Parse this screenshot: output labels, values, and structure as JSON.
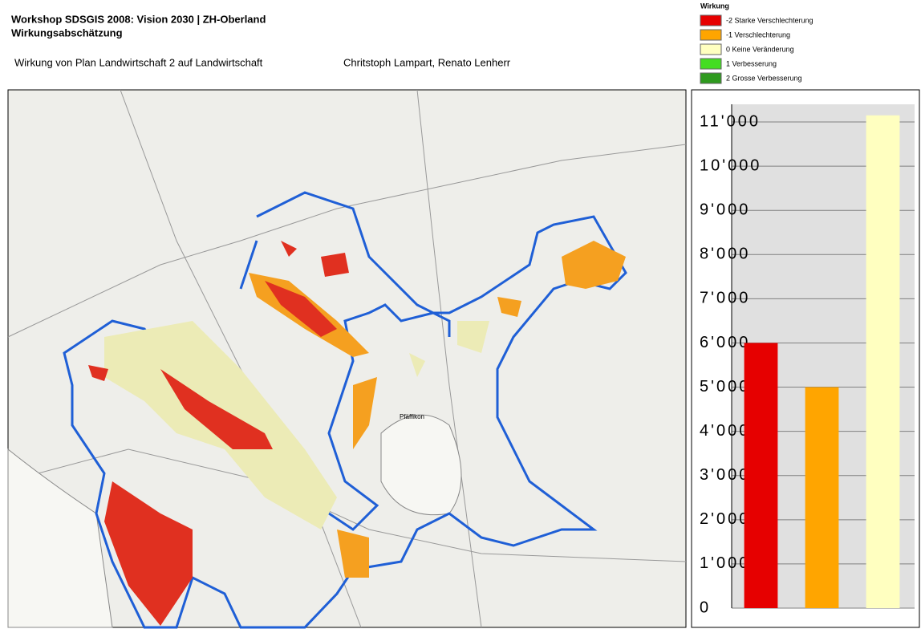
{
  "header": {
    "title": "Workshop SDSGIS 2008: Vision 2030 | ZH-Oberland",
    "subtitle": "Wirkungsabschätzung",
    "description": "Wirkung von Plan Landwirtschaft 2 auf Landwirtschaft",
    "authors": "Chritstoph Lampart, Renato Lenherr"
  },
  "legend": {
    "title": "Wirkung",
    "items": [
      {
        "label": "-2 Starke Verschlechterung",
        "color": "#e60000"
      },
      {
        "label": "-1 Verschlechterung",
        "color": "#ffa500"
      },
      {
        "label": "0 Keine Veränderung",
        "color": "#ffffc0"
      },
      {
        "label": "1 Verbesserung",
        "color": "#44dd22"
      },
      {
        "label": "2 Grosse Verbesserung",
        "color": "#2e9a1e"
      }
    ]
  },
  "map": {
    "place": "Pfäffikon"
  },
  "chart_data": {
    "type": "bar",
    "categories": [
      null,
      null,
      null
    ],
    "values": [
      6000,
      5000,
      11150
    ],
    "colors": [
      "#e60000",
      "#ffa500",
      "#ffffc0"
    ],
    "ylim": [
      0,
      11400
    ],
    "grid": true,
    "yticks": [
      0,
      {
        "value": 1000,
        "label": "1'000"
      },
      {
        "value": 2000,
        "label": "2'000"
      },
      {
        "value": 3000,
        "label": "3'000"
      },
      {
        "value": 4000,
        "label": "4'000"
      },
      {
        "value": 5000,
        "label": "5'000"
      },
      {
        "value": 6000,
        "label": "6'000"
      },
      {
        "value": 7000,
        "label": "7'000"
      },
      {
        "value": 8000,
        "label": "8'000"
      },
      {
        "value": 9000,
        "label": "9'000"
      },
      {
        "value": 10000,
        "label": "10'000"
      },
      {
        "value": 11000,
        "label": "11'000"
      }
    ]
  }
}
